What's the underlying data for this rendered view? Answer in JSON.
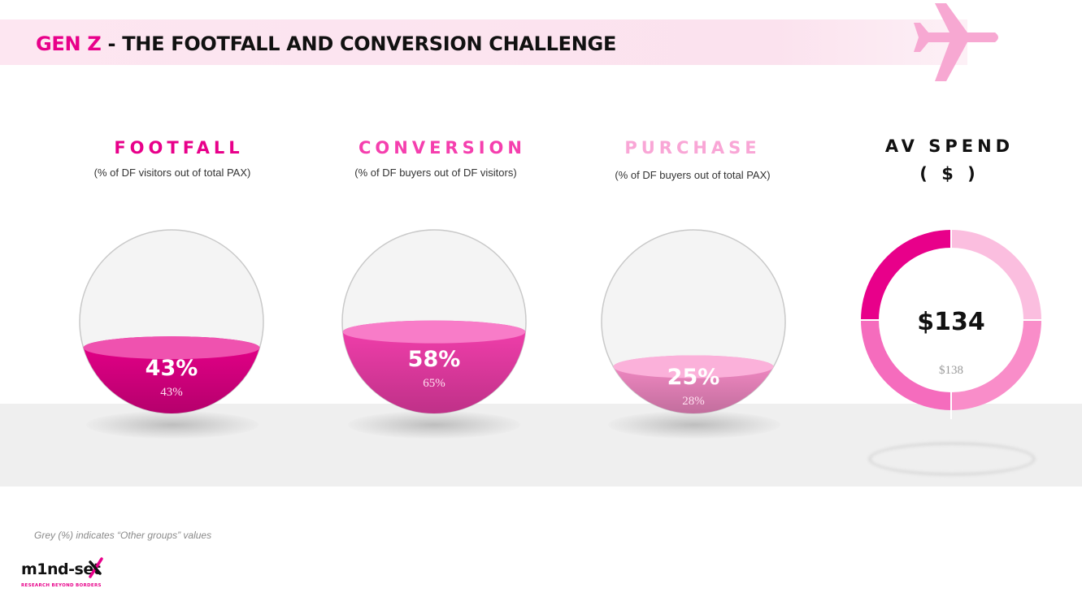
{
  "header": {
    "title_accent": "GEN Z",
    "title_rest": " - THE FOOTFALL AND CONVERSION CHALLENGE"
  },
  "colors": {
    "accent": "#e8008a",
    "footfall": "#e8008a",
    "conversion": "#f53fae",
    "purchase": "#f98dc9",
    "ring_segments": [
      "#e8008a",
      "#fbbedf",
      "#f98dc9",
      "#f56cbd"
    ]
  },
  "chart_data": [
    {
      "type": "gauge",
      "title": "FOOTFALL",
      "subtitle": "(% of DF visitors out of total PAX)",
      "value": 43,
      "value_label": "43%",
      "comparison": 43,
      "comparison_label": "43%"
    },
    {
      "type": "gauge",
      "title": "CONVERSION",
      "subtitle": "(% of DF buyers out of DF visitors)",
      "value": 58,
      "value_label": "58%",
      "comparison": 65,
      "comparison_label": "65%"
    },
    {
      "type": "gauge",
      "title": "PURCHASE",
      "subtitle": "(% of DF buyers out of total PAX)",
      "value": 25,
      "value_label": "25%",
      "comparison": 28,
      "comparison_label": "28%"
    },
    {
      "type": "donut",
      "title": "AV SPEND",
      "subtitle": "( $ )",
      "value": 134,
      "value_label": "$134",
      "comparison": 138,
      "comparison_label": "$138"
    }
  ],
  "footnote": "Grey (%) indicates “Other groups” values",
  "logo": {
    "wordmark": "m1nd-set",
    "tagline": "RESEARCH BEYOND BORDERS"
  }
}
